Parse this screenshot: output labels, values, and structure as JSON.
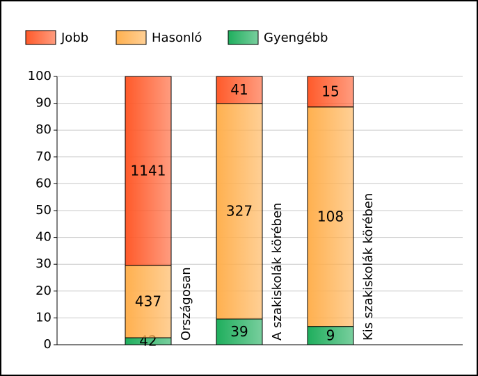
{
  "chart_data": {
    "type": "bar",
    "stacked": "percent",
    "categories": [
      "Országosan",
      "A szakiskolák körében",
      "Kis szakiskolák körében"
    ],
    "series": [
      {
        "name": "Gyengébb",
        "color": "#1fae5d",
        "values": [
          42,
          39,
          9
        ]
      },
      {
        "name": "Hasonló",
        "color": "#ffb04f",
        "values": [
          437,
          327,
          108
        ]
      },
      {
        "name": "Jobb",
        "color": "#ff5a2a",
        "values": [
          1141,
          41,
          15
        ]
      }
    ],
    "legend_order": [
      2,
      1,
      0
    ],
    "ylim": [
      0,
      100
    ],
    "yticks": [
      0,
      10,
      20,
      30,
      40,
      50,
      60,
      70,
      80,
      90,
      100
    ],
    "grid": true
  }
}
